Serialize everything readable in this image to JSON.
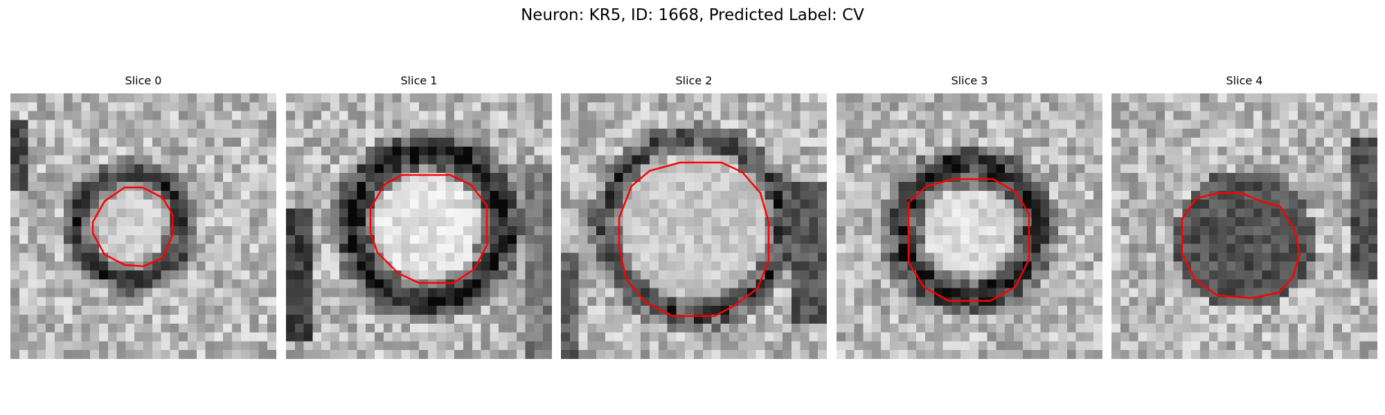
{
  "figure": {
    "title": "Neuron: KR5, ID: 1668, Predicted Label: CV",
    "contour_color": "#ff0000"
  },
  "panels": [
    {
      "title": "Slice 0",
      "content": "grayscale electron micrograph patch with a dark ring-shaped vesicle outlined by a red polygon"
    },
    {
      "title": "Slice 1",
      "content": "grayscale electron micrograph patch with a large dark ring around a bright center outlined by a red polygon"
    },
    {
      "title": "Slice 2",
      "content": "grayscale electron micrograph patch with a large faint ring outlined by a red polygon"
    },
    {
      "title": "Slice 3",
      "content": "grayscale electron micrograph patch with a dark ring around a bright center outlined by a red polygon"
    },
    {
      "title": "Slice 4",
      "content": "grayscale electron micrograph patch with a dark filled blob outlined by a red polygon"
    }
  ]
}
